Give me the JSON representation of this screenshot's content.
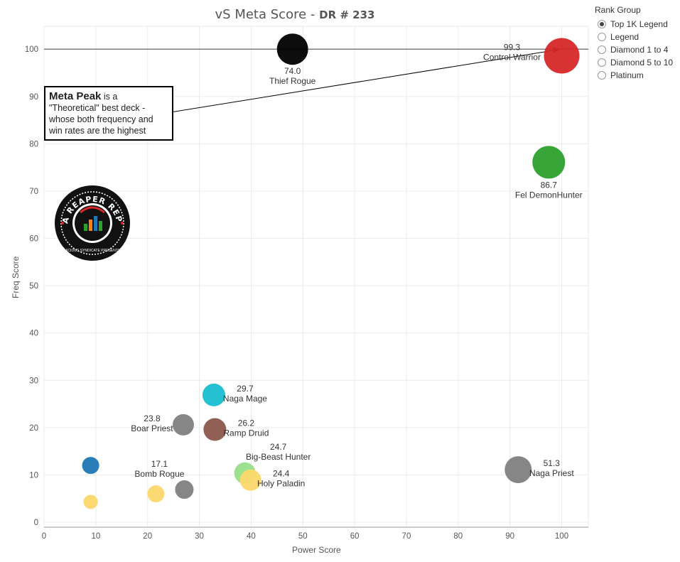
{
  "title": {
    "main": "vS Meta Score",
    "sub": "DR # 233"
  },
  "legend": {
    "title": "Rank Group",
    "options": [
      "Top 1K Legend",
      "Legend",
      "Diamond 1 to 4",
      "Diamond 5 to 10",
      "Platinum"
    ],
    "selected": 0
  },
  "annotation": {
    "bold": "Meta Peak",
    "text": " is a \"Theoretical\" best deck - whose both frequency and win rates are the highest"
  },
  "logo": {
    "text": "DATA REAPER REPORT",
    "subtext": "VICIOUS SYNDICATE PRESENTS"
  },
  "chart_data": {
    "type": "scatter",
    "xlabel": "Power Score",
    "ylabel": "Freq Score",
    "xlim": [
      0,
      105
    ],
    "ylim": [
      -1,
      105
    ],
    "xticks": [
      0,
      10,
      20,
      30,
      40,
      50,
      60,
      70,
      80,
      90,
      100
    ],
    "yticks": [
      0,
      10,
      20,
      30,
      40,
      50,
      60,
      70,
      80,
      90,
      100
    ],
    "grid": true,
    "reference_line_y": 100,
    "points": [
      {
        "name": "Thief Rogue",
        "score": "74.0",
        "x": 48.0,
        "y": 100,
        "size": 22,
        "color": "#000000",
        "label_pos": "below"
      },
      {
        "name": "Control Warrior",
        "score": "99.3",
        "x": 100,
        "y": 98.6,
        "size": 25,
        "color": "#d62728",
        "label_pos": "left"
      },
      {
        "name": "Fel DemonHunter",
        "score": "86.7",
        "x": 97.5,
        "y": 76.1,
        "size": 23,
        "color": "#2ca02c",
        "label_pos": "below"
      },
      {
        "name": "Naga Mage",
        "score": "29.7",
        "x": 32.8,
        "y": 26.9,
        "size": 16,
        "color": "#17becf",
        "label_pos": "right"
      },
      {
        "name": "Boar Priest",
        "score": "23.8",
        "x": 26.9,
        "y": 20.6,
        "size": 15,
        "color": "#7f7f7f",
        "label_pos": "left"
      },
      {
        "name": "Ramp Druid",
        "score": "26.2",
        "x": 33.0,
        "y": 19.6,
        "size": 16,
        "color": "#8c564b",
        "label_pos": "right"
      },
      {
        "name": "Big-Beast Hunter",
        "score": "24.7",
        "x": 38.8,
        "y": 10.4,
        "size": 15,
        "color": "#98df8a",
        "label_pos": "above-right"
      },
      {
        "name": "Holy Paladin",
        "score": "24.4",
        "x": 39.9,
        "y": 8.9,
        "size": 15,
        "color": "#fcd86b",
        "label_pos": "right"
      },
      {
        "name": "Bomb Rogue",
        "score": "17.1",
        "x": 27.1,
        "y": 6.9,
        "size": 13,
        "color": "#7f7f7f",
        "label_pos": "above-left"
      },
      {
        "name": "Naga Priest",
        "score": "51.3",
        "x": 91.6,
        "y": 11.1,
        "size": 19,
        "color": "#7f7f7f",
        "label_pos": "right"
      },
      {
        "name": "",
        "score": "",
        "x": 9.0,
        "y": 12.0,
        "size": 12,
        "color": "#1f77b4",
        "label_pos": "none"
      },
      {
        "name": "",
        "score": "",
        "x": 21.6,
        "y": 6.0,
        "size": 12,
        "color": "#fcd86b",
        "label_pos": "none"
      },
      {
        "name": "",
        "score": "",
        "x": 9.0,
        "y": 4.3,
        "size": 10,
        "color": "#fcd86b",
        "label_pos": "none"
      }
    ],
    "arrow": {
      "from": [
        48,
        91
      ],
      "to": [
        100,
        100
      ]
    }
  }
}
